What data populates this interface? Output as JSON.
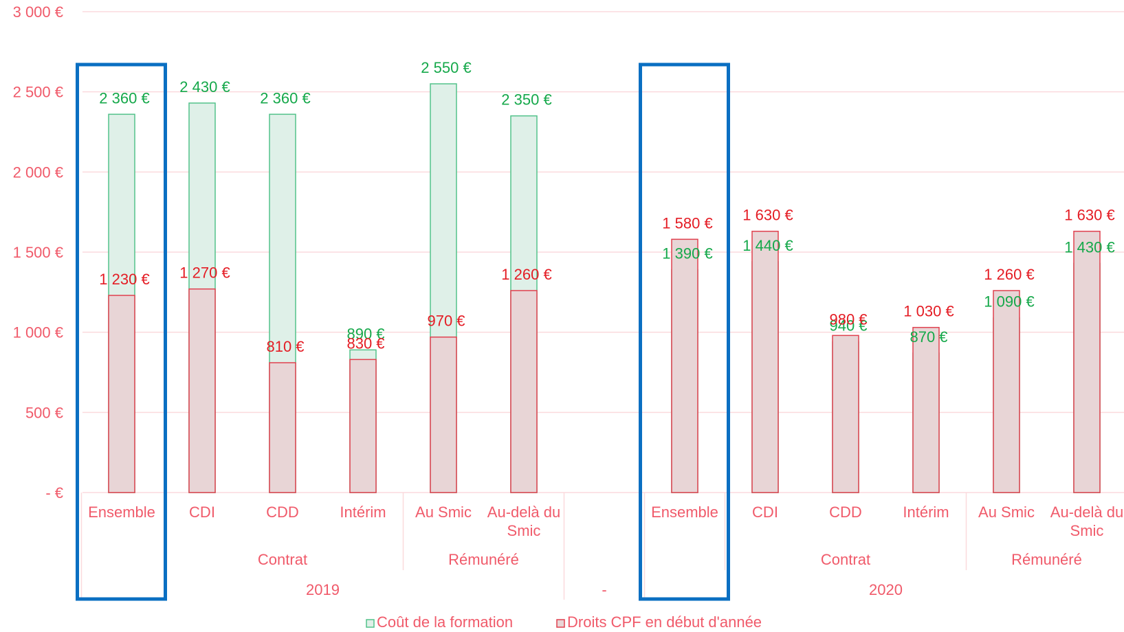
{
  "colors": {
    "cost_fill": "#dff0e8",
    "cost_stroke": "#52c28a",
    "cost_label": "#15a84a",
    "rights_fill": "#e8d5d6",
    "rights_stroke": "#e0404e",
    "rights_label": "#e41c24",
    "axis_text": "#f05a6a",
    "grid": "#fbdadd",
    "highlight": "#0a6fc2"
  },
  "chart_data": {
    "type": "bar",
    "ylim": [
      0,
      3000
    ],
    "y_ticks": [
      "-   €",
      "500 €",
      "1 000 €",
      "1 500 €",
      "2 000 €",
      "2 500 €",
      "3 000 €"
    ],
    "y_tick_values": [
      0,
      500,
      1000,
      1500,
      2000,
      2500,
      3000
    ],
    "grid": true,
    "legend_position": "bottom",
    "categories": [
      "2019 | Ensemble",
      "2019 | Contrat | CDI",
      "2019 | Contrat | CDD",
      "2019 | Contrat | Intérim",
      "2019 | Rémunéré | Au Smic",
      "2019 | Rémunéré | Au-delà du Smic",
      "-",
      "2020 | Ensemble",
      "2020 | Contrat | CDI",
      "2020 | Contrat | CDD",
      "2020 | Contrat | Intérim",
      "2020 | Rémunéré | Au Smic",
      "2020 | Rémunéré | Au-delà du Smic"
    ],
    "category_labels": [
      [
        "Ensemble"
      ],
      [
        "CDI"
      ],
      [
        "CDD"
      ],
      [
        "Intérim"
      ],
      [
        "Au Smic"
      ],
      [
        "Au-delà du",
        "Smic"
      ],
      [],
      [
        "Ensemble"
      ],
      [
        "CDI"
      ],
      [
        "CDD"
      ],
      [
        "Intérim"
      ],
      [
        "Au Smic"
      ],
      [
        "Au-delà du",
        "Smic"
      ]
    ],
    "groups": [
      {
        "label": "Contrat",
        "first": 1,
        "last": 3
      },
      {
        "label": "Rémunéré",
        "first": 4,
        "last": 5
      },
      {
        "label": "Contrat",
        "first": 8,
        "last": 10
      },
      {
        "label": "Rémunéré",
        "first": 11,
        "last": 12
      }
    ],
    "years": [
      {
        "label": "2019",
        "first": 0,
        "last": 5
      },
      {
        "label": "-",
        "first": 6,
        "last": 6
      },
      {
        "label": "2020",
        "first": 7,
        "last": 12
      }
    ],
    "highlighted": [
      0,
      7
    ],
    "series": [
      {
        "name": "Coût de la formation",
        "values": [
          2360,
          2430,
          2360,
          890,
          2550,
          2350,
          null,
          1390,
          1440,
          940,
          870,
          1090,
          1430
        ],
        "labels": [
          "2 360 €",
          "2 430 €",
          "2 360 €",
          "890 €",
          "2 550 €",
          "2 350 €",
          "",
          "1 390 €",
          "1 440 €",
          "940 €",
          "870 €",
          "1 090 €",
          "1 430 €"
        ]
      },
      {
        "name": "Droits CPF en début d'année",
        "values": [
          1230,
          1270,
          810,
          830,
          970,
          1260,
          null,
          1580,
          1630,
          980,
          1030,
          1260,
          1630
        ],
        "labels": [
          "1 230 €",
          "1 270 €",
          "810 €",
          "830 €",
          "970 €",
          "1 260 €",
          "",
          "1 580 €",
          "1 630 €",
          "980 €",
          "1 030 €",
          "1 260 €",
          "1 630 €"
        ]
      }
    ]
  }
}
